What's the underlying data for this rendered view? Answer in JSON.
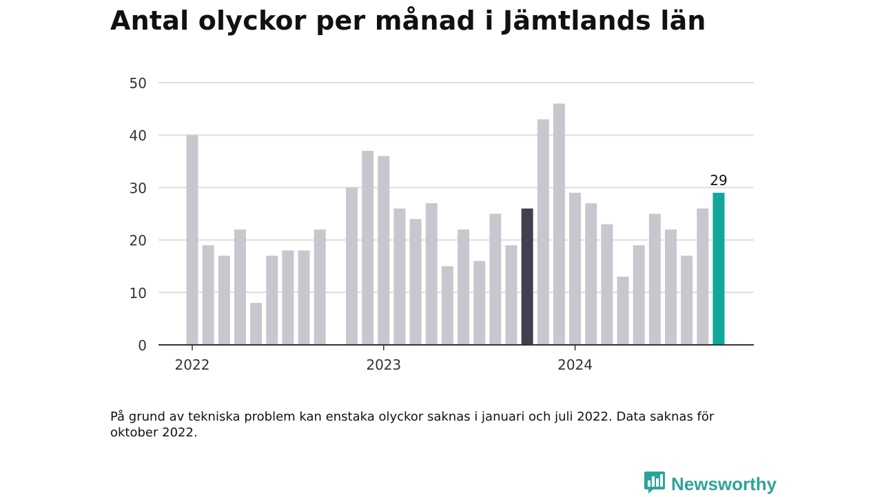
{
  "title": "Antal olyckor per månad i Jämtlands län",
  "footnote": "På grund av tekniska problem kan enstaka olyckor saknas i januari och juli 2022. Data saknas för oktober 2022.",
  "brand": {
    "name": "Newsworthy",
    "icon": "newsworthy-chart-bubble-icon"
  },
  "colors": {
    "bar": "#c8c7d0",
    "bar_highlight_prior_year": "#42404f",
    "bar_highlight_latest": "#11a89b",
    "gridline": "#dddddd",
    "axis": "#333333",
    "brand": "#2ea39a"
  },
  "chart_data": {
    "type": "bar",
    "title": "Antal olyckor per månad i Jämtlands län",
    "xlabel": "",
    "ylabel": "",
    "ylim": [
      0,
      50
    ],
    "yticks": [
      0,
      10,
      20,
      30,
      40,
      50
    ],
    "grid": true,
    "x_tick_labels": [
      {
        "label": "2022",
        "at": "2022-01"
      },
      {
        "label": "2023",
        "at": "2023-01"
      },
      {
        "label": "2024",
        "at": "2024-01"
      }
    ],
    "categories": [
      "2022-01",
      "2022-02",
      "2022-03",
      "2022-04",
      "2022-05",
      "2022-06",
      "2022-07",
      "2022-08",
      "2022-09",
      "2022-10",
      "2022-11",
      "2022-12",
      "2023-01",
      "2023-02",
      "2023-03",
      "2023-04",
      "2023-05",
      "2023-06",
      "2023-07",
      "2023-08",
      "2023-09",
      "2023-10",
      "2023-11",
      "2023-12",
      "2024-01",
      "2024-02",
      "2024-03",
      "2024-04",
      "2024-05",
      "2024-06",
      "2024-07",
      "2024-08",
      "2024-09",
      "2024-10"
    ],
    "values": [
      40,
      19,
      17,
      22,
      8,
      17,
      18,
      18,
      22,
      null,
      30,
      37,
      36,
      26,
      24,
      27,
      15,
      22,
      16,
      25,
      19,
      26,
      43,
      46,
      29,
      27,
      23,
      13,
      19,
      25,
      22,
      17,
      26,
      29
    ],
    "highlight": {
      "2023-10": "bar_highlight_prior_year",
      "2024-10": "bar_highlight_latest"
    },
    "data_labels": [
      {
        "category": "2024-10",
        "text": "29"
      }
    ]
  }
}
